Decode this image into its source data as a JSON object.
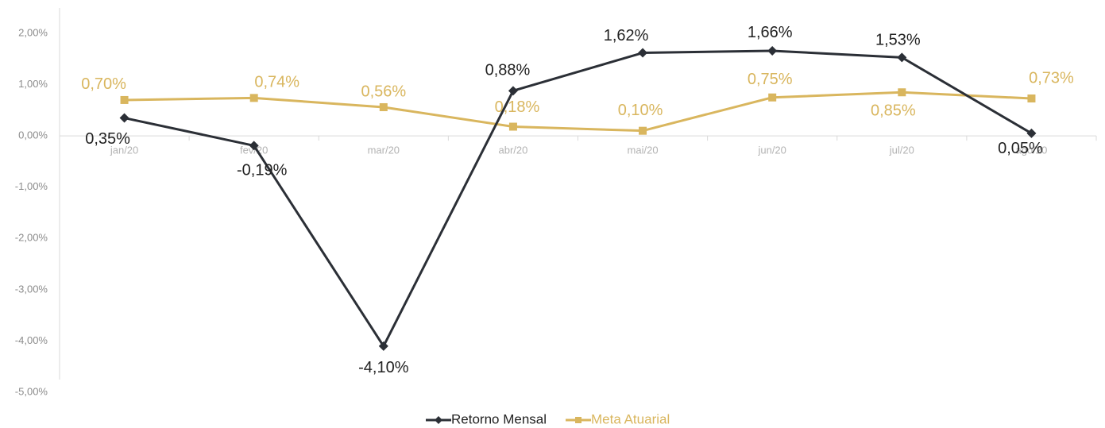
{
  "chart_data": {
    "type": "line",
    "title": "",
    "xlabel": "",
    "ylabel": "",
    "categories": [
      "jan/20",
      "fev/20",
      "mar/20",
      "abr/20",
      "mai/20",
      "jun/20",
      "jul/20",
      "ago/20"
    ],
    "ylim": [
      -5,
      2
    ],
    "yticks": [
      2,
      1,
      0,
      -1,
      -2,
      -3,
      -4,
      -5
    ],
    "ytick_labels": [
      "2,00%",
      "1,00%",
      "0,00%",
      "-1,00%",
      "-2,00%",
      "-3,00%",
      "-4,00%",
      "-5,00%"
    ],
    "grid": false,
    "legend_position": "bottom",
    "series": [
      {
        "name": "Retorno Mensal",
        "color": "#2b2f36",
        "marker": "diamond",
        "values": [
          0.35,
          -0.19,
          -4.1,
          0.88,
          1.62,
          1.66,
          1.53,
          0.05
        ],
        "labels": [
          "0,35%",
          "-0,19%",
          "-4,10%",
          "0,88%",
          "1,62%",
          "1,66%",
          "1,53%",
          "0,05%"
        ]
      },
      {
        "name": "Meta Atuarial",
        "color": "#d9b65e",
        "marker": "square",
        "values": [
          0.7,
          0.74,
          0.56,
          0.18,
          0.1,
          0.75,
          0.85,
          0.73
        ],
        "labels": [
          "0,70%",
          "0,74%",
          "0,56%",
          "0,18%",
          "0,10%",
          "0,75%",
          "0,85%",
          "0,73%"
        ]
      }
    ]
  }
}
